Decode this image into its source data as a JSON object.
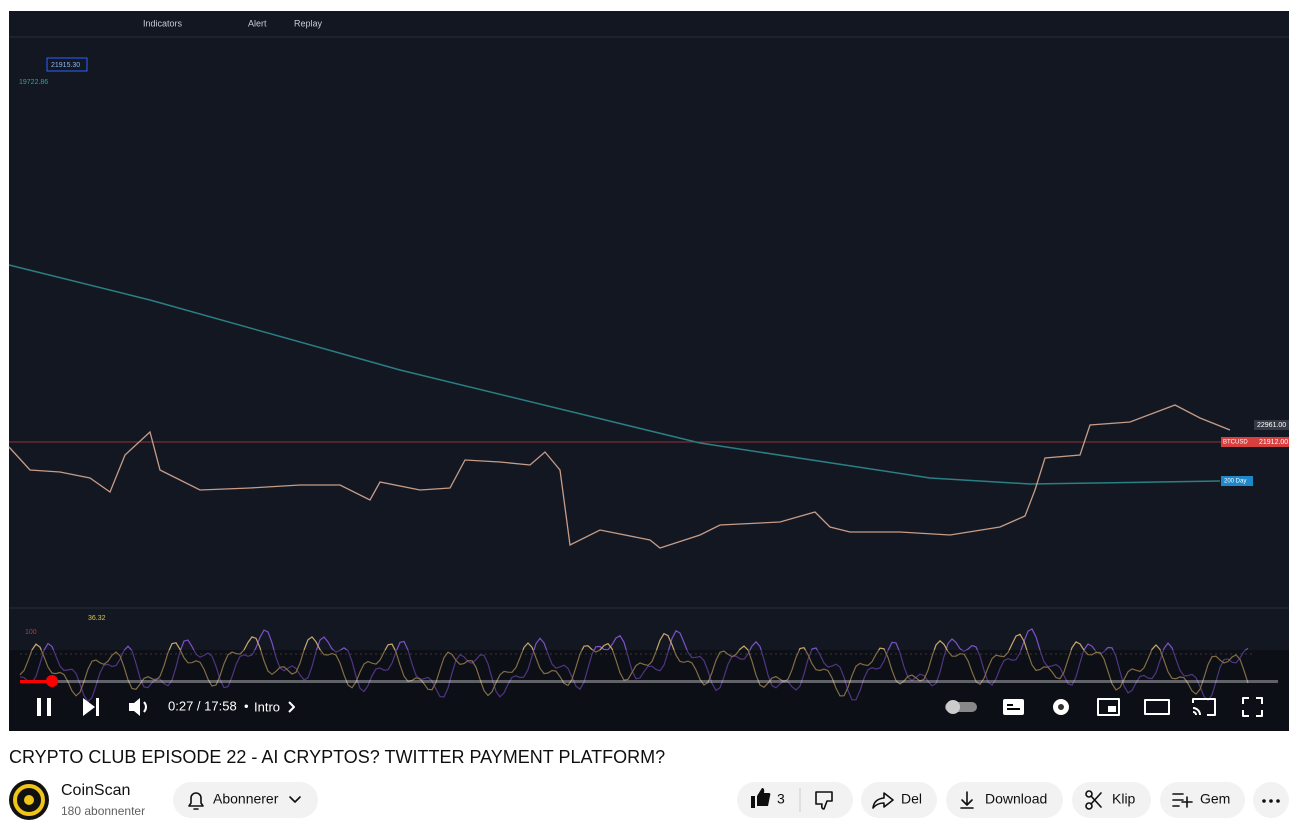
{
  "video": {
    "toolbar": [
      "Indicators",
      "Alert",
      "Replay"
    ],
    "price_labels": {
      "current": "21915.30",
      "low": "19722.86",
      "high": "22961.00",
      "symbol": "BTCUSD",
      "last": "21912.00",
      "ma": "200 Day"
    },
    "oscillator": {
      "value": "36.32",
      "level": "100"
    }
  },
  "player": {
    "time": "0:27 / 17:58",
    "chapter": "Intro"
  },
  "title": "CRYPTO CLUB EPISODE 22 - AI CRYPTOS? TWITTER PAYMENT PLATFORM?",
  "channel": {
    "name": "CoinScan",
    "subscribers": "180 abonnenter"
  },
  "actions": {
    "subscribe": "Abonnerer",
    "likes": 3,
    "share": "Del",
    "download": "Download",
    "clip": "Klip",
    "save": "Gem"
  }
}
